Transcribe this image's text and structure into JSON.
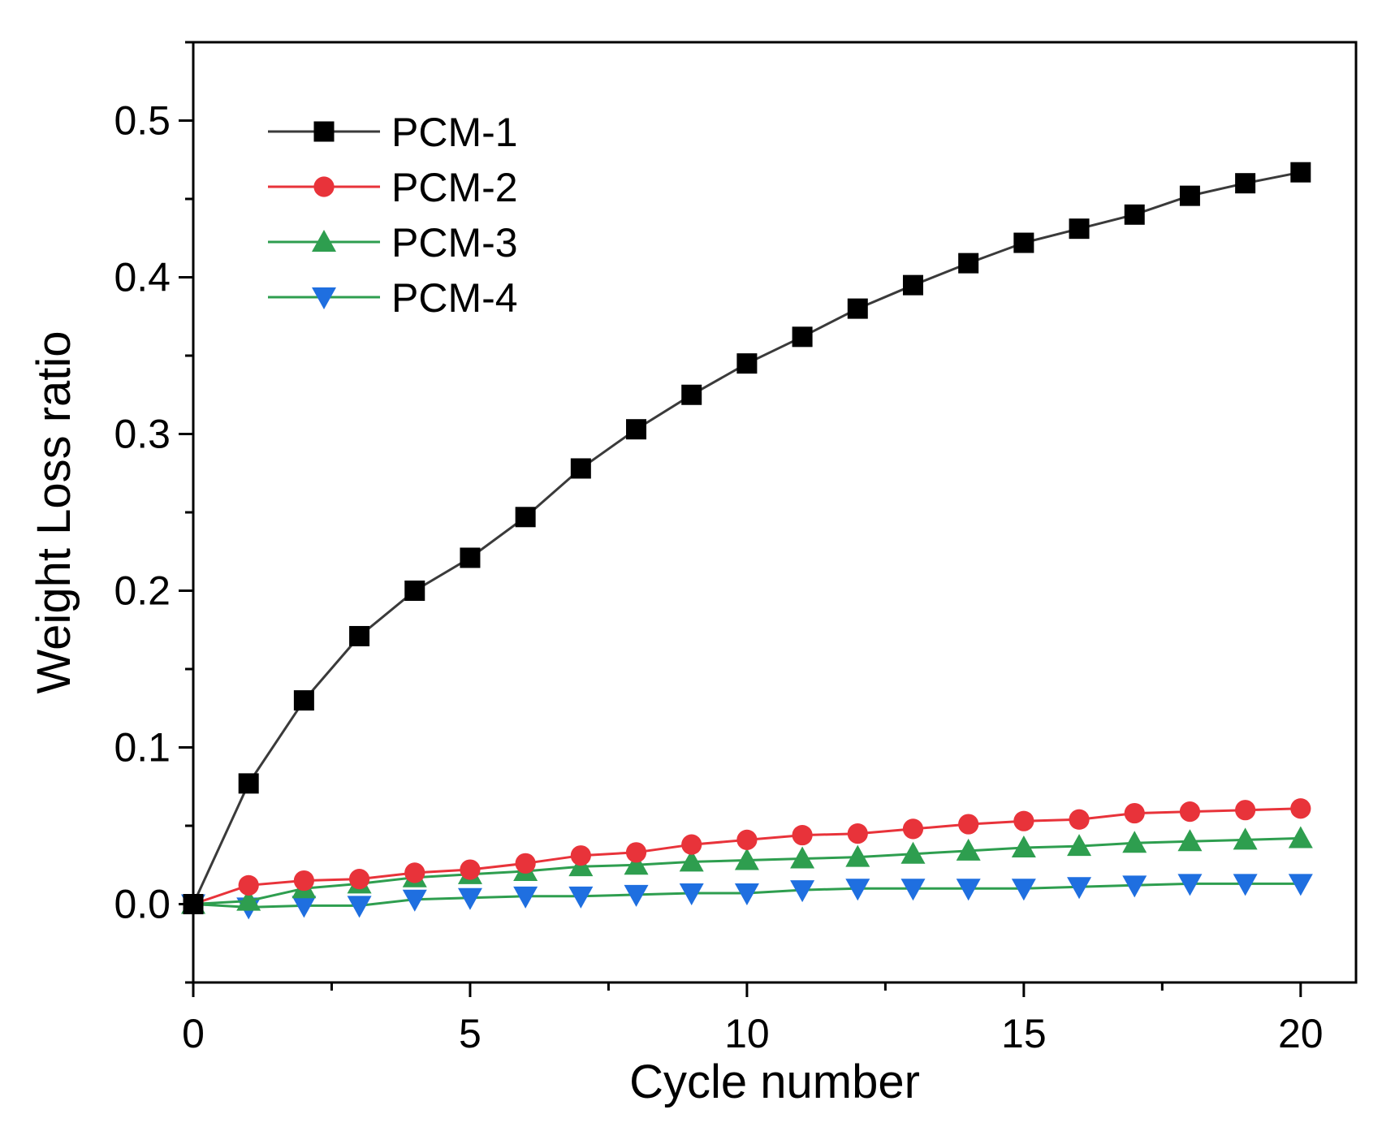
{
  "chart_data": {
    "type": "line",
    "title": "",
    "xlabel": "Cycle number",
    "ylabel": "Weight Loss ratio",
    "xlim": [
      0,
      21
    ],
    "ylim": [
      -0.05,
      0.55
    ],
    "xticks": [
      0,
      5,
      10,
      15,
      20
    ],
    "xtick_labels": [
      "0",
      "5",
      "10",
      "15",
      "20"
    ],
    "yticks": [
      0.0,
      0.1,
      0.2,
      0.3,
      0.4,
      0.5
    ],
    "ytick_labels": [
      "0.0",
      "0.1",
      "0.2",
      "0.3",
      "0.4",
      "0.5"
    ],
    "legend_position": "top-left",
    "x": [
      0,
      1,
      2,
      3,
      4,
      5,
      6,
      7,
      8,
      9,
      10,
      11,
      12,
      13,
      14,
      15,
      16,
      17,
      18,
      19,
      20
    ],
    "series": [
      {
        "name": "PCM-1",
        "color": "#000000",
        "line_color": "#3a3a3a",
        "marker": "square",
        "values": [
          0.0,
          0.077,
          0.13,
          0.171,
          0.2,
          0.221,
          0.247,
          0.278,
          0.303,
          0.325,
          0.345,
          0.362,
          0.38,
          0.395,
          0.409,
          0.422,
          0.431,
          0.44,
          0.452,
          0.46,
          0.467
        ]
      },
      {
        "name": "PCM-2",
        "color": "#e8333a",
        "line_color": "#e8333a",
        "marker": "circle",
        "values": [
          0.0,
          0.012,
          0.015,
          0.016,
          0.02,
          0.022,
          0.026,
          0.031,
          0.033,
          0.038,
          0.041,
          0.044,
          0.045,
          0.048,
          0.051,
          0.053,
          0.054,
          0.058,
          0.059,
          0.06,
          0.061
        ]
      },
      {
        "name": "PCM-3",
        "color": "#2e9e4f",
        "line_color": "#2e9e4f",
        "marker": "triangle-up",
        "values": [
          0.0,
          0.002,
          0.01,
          0.013,
          0.017,
          0.019,
          0.021,
          0.024,
          0.025,
          0.027,
          0.028,
          0.029,
          0.03,
          0.032,
          0.034,
          0.036,
          0.037,
          0.039,
          0.04,
          0.041,
          0.042
        ]
      },
      {
        "name": "PCM-4",
        "color": "#1f6fe0",
        "line_color": "#2e9e4f",
        "marker": "triangle-down",
        "values": [
          0.0,
          -0.002,
          -0.001,
          -0.001,
          0.003,
          0.004,
          0.005,
          0.005,
          0.006,
          0.007,
          0.007,
          0.009,
          0.01,
          0.01,
          0.01,
          0.01,
          0.011,
          0.012,
          0.013,
          0.013,
          0.013
        ]
      }
    ]
  }
}
